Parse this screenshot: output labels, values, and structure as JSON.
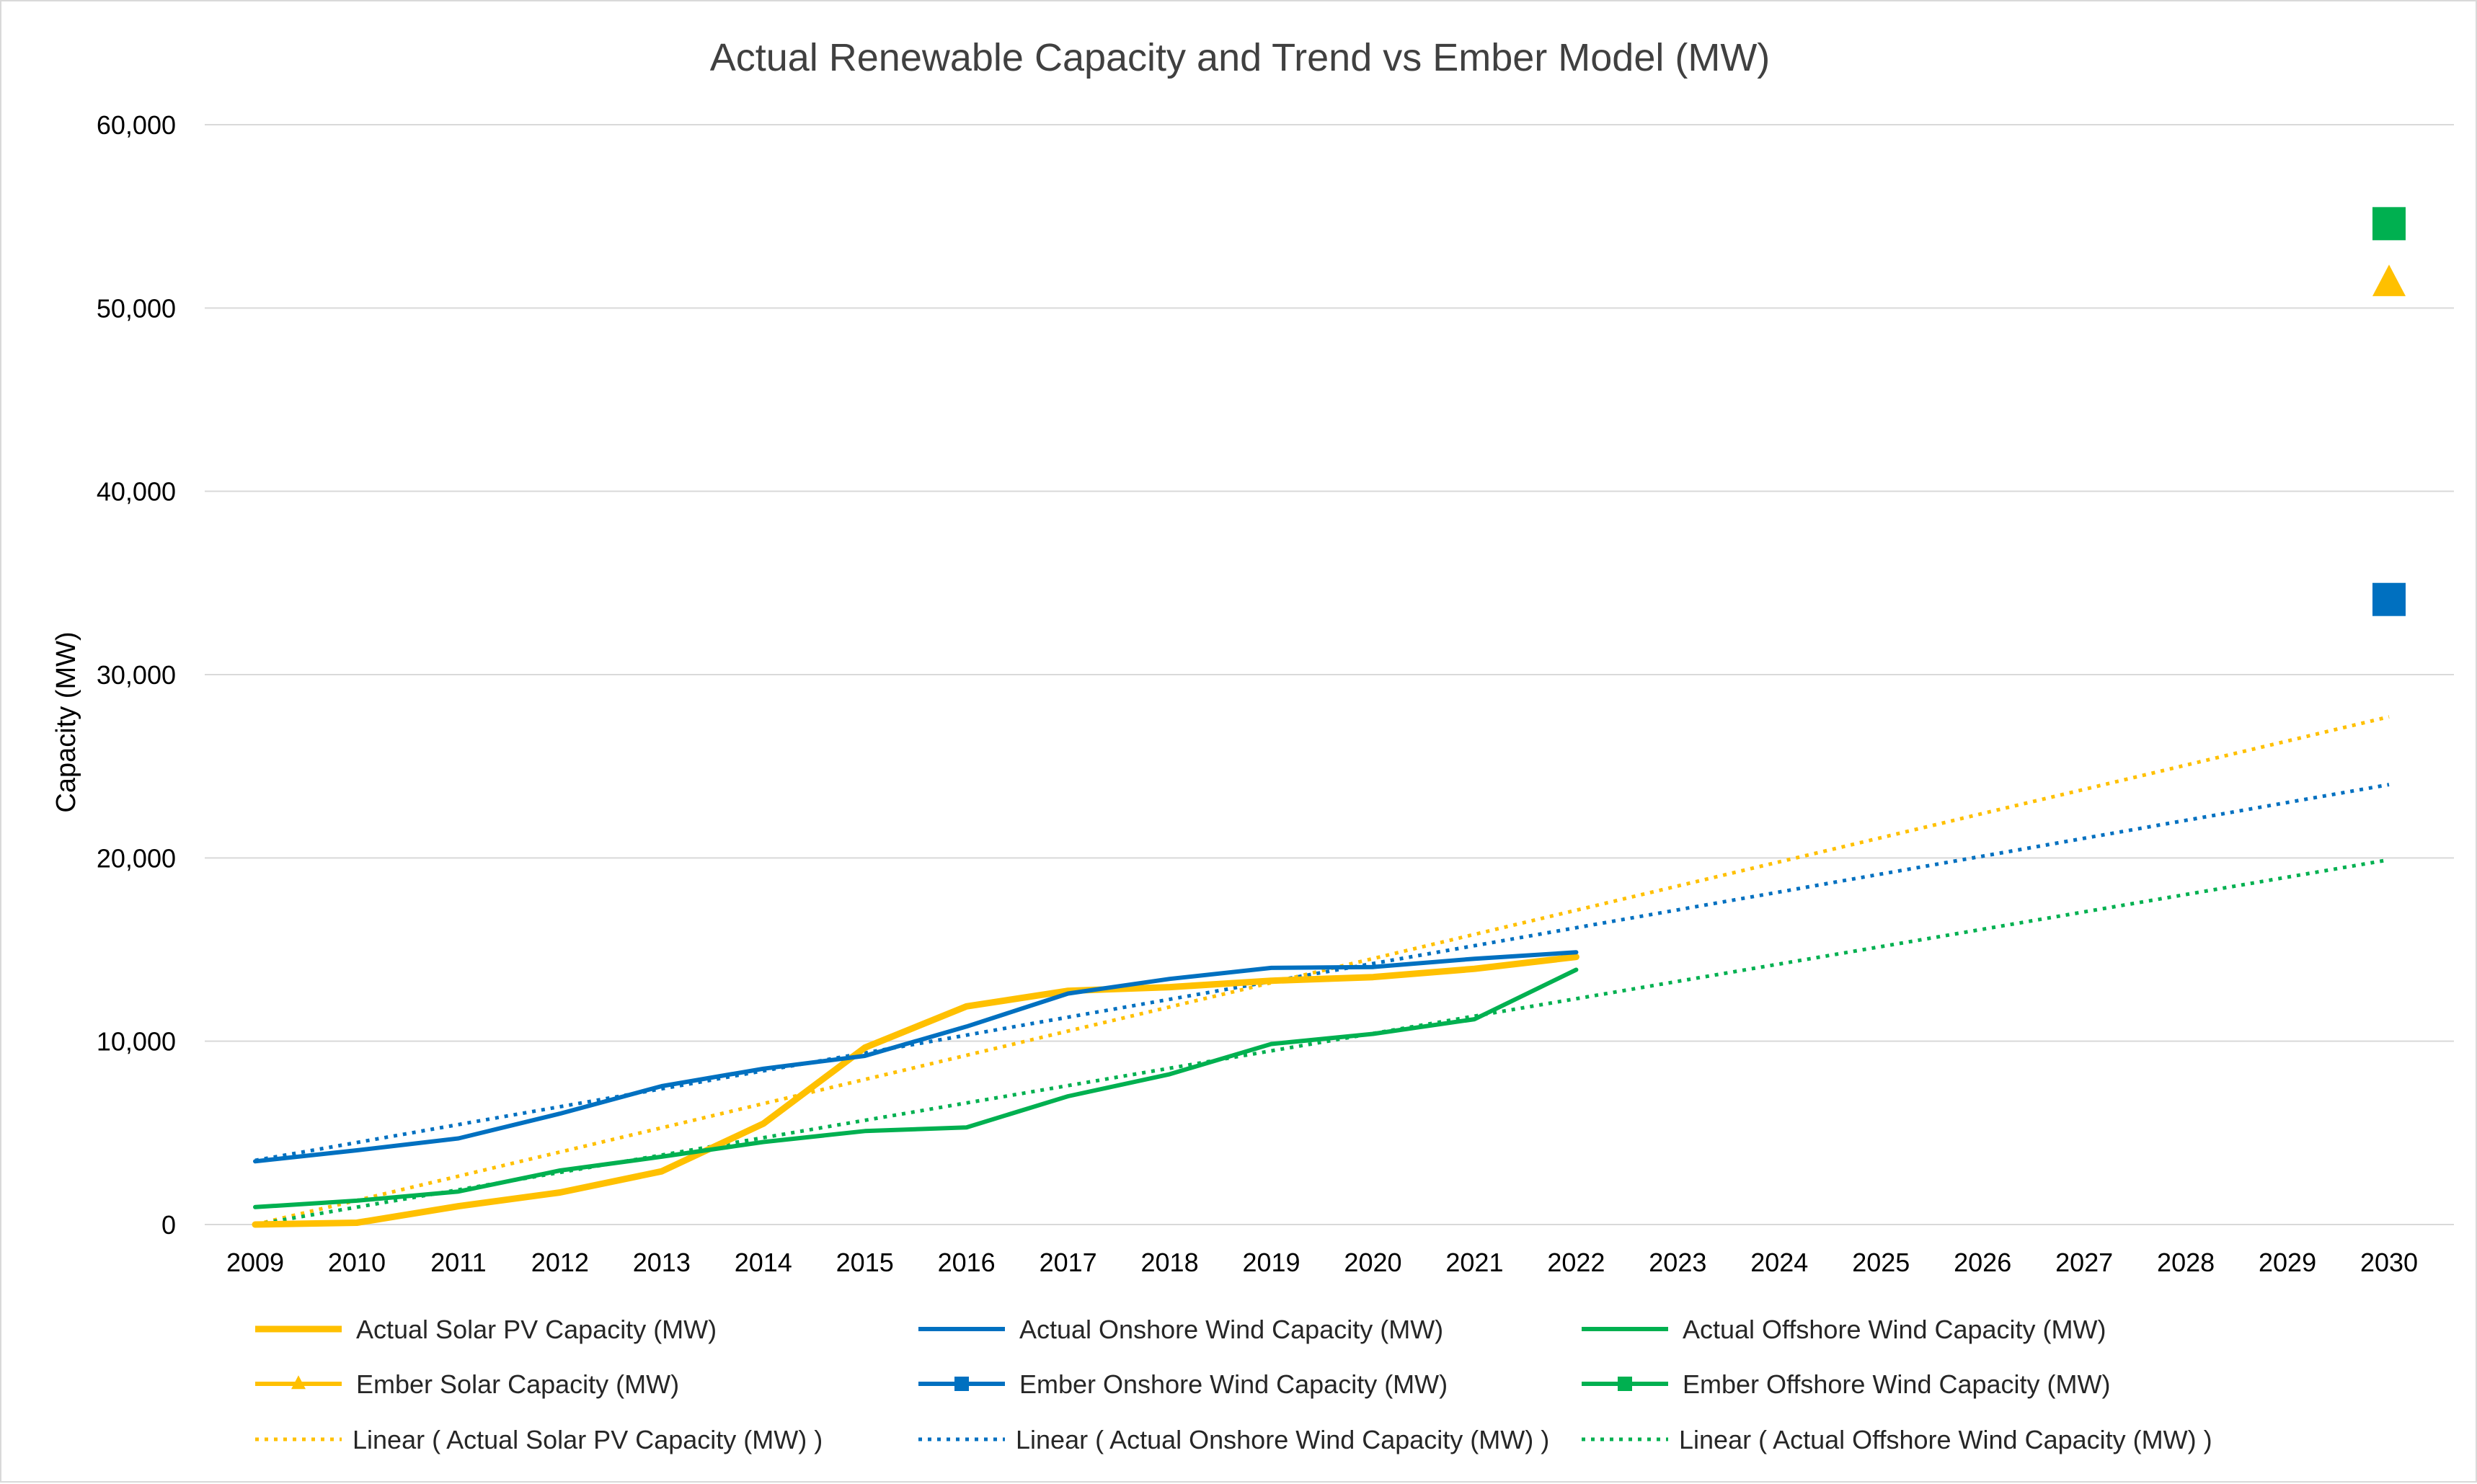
{
  "chart_data": {
    "type": "line",
    "title": "Actual Renewable Capacity and Trend vs Ember Model (MW)",
    "xlabel": "",
    "ylabel": "Capacity (MW)",
    "ylim": [
      0,
      60000
    ],
    "yticks": [
      0,
      10000,
      20000,
      30000,
      40000,
      50000,
      60000
    ],
    "ytick_labels": [
      "0",
      "10,000",
      "20,000",
      "30,000",
      "40,000",
      "50,000",
      "60,000"
    ],
    "categories": [
      "2009",
      "2010",
      "2011",
      "2012",
      "2013",
      "2014",
      "2015",
      "2016",
      "2017",
      "2018",
      "2019",
      "2020",
      "2021",
      "2022",
      "2023",
      "2024",
      "2025",
      "2026",
      "2027",
      "2028",
      "2029",
      "2030"
    ],
    "grid": true,
    "legend_position": "bottom",
    "series": [
      {
        "name": "Actual Solar PV Capacity (MW)",
        "color": "#FFC000",
        "style": "solid",
        "marker": "none",
        "values": [
          0,
          100,
          1000,
          1750,
          2900,
          5500,
          9650,
          11900,
          12750,
          12950,
          13300,
          13500,
          13950,
          14600,
          null,
          null,
          null,
          null,
          null,
          null,
          null,
          null
        ]
      },
      {
        "name": "Actual Onshore Wind Capacity (MW)",
        "color": "#0070C0",
        "style": "solid",
        "marker": "none",
        "values": [
          3450,
          4050,
          4700,
          6050,
          7550,
          8500,
          9200,
          10800,
          12600,
          13400,
          14000,
          14050,
          14500,
          14850,
          null,
          null,
          null,
          null,
          null,
          null,
          null,
          null
        ]
      },
      {
        "name": "Actual Offshore Wind Capacity (MW)",
        "color": "#00B050",
        "style": "solid",
        "marker": "none",
        "values": [
          950,
          1300,
          1800,
          2950,
          3700,
          4500,
          5100,
          5300,
          7000,
          8200,
          9850,
          10400,
          11200,
          13900,
          null,
          null,
          null,
          null,
          null,
          null,
          null,
          null
        ]
      },
      {
        "name": "Ember Solar Capacity (MW)",
        "color": "#FFC000",
        "style": "solid",
        "marker": "triangle",
        "values": [
          null,
          null,
          null,
          null,
          null,
          null,
          null,
          null,
          null,
          null,
          null,
          null,
          null,
          null,
          null,
          null,
          null,
          null,
          null,
          null,
          null,
          51300
        ]
      },
      {
        "name": "Ember Onshore Wind Capacity (MW)",
        "color": "#0070C0",
        "style": "solid",
        "marker": "square",
        "values": [
          null,
          null,
          null,
          null,
          null,
          null,
          null,
          null,
          null,
          null,
          null,
          null,
          null,
          null,
          null,
          null,
          null,
          null,
          null,
          null,
          null,
          34100
        ]
      },
      {
        "name": "Ember Offshore Wind Capacity (MW)",
        "color": "#00B050",
        "style": "solid",
        "marker": "square",
        "values": [
          null,
          null,
          null,
          null,
          null,
          null,
          null,
          null,
          null,
          null,
          null,
          null,
          null,
          null,
          null,
          null,
          null,
          null,
          null,
          null,
          null,
          54600
        ]
      },
      {
        "name": "Linear ( Actual Solar PV Capacity (MW) )",
        "color": "#FFC000",
        "style": "dotted",
        "marker": "none",
        "values": [
          0,
          1319,
          2638,
          3957,
          5276,
          6595,
          7914,
          9233,
          10552,
          11871,
          13190,
          14509,
          15828,
          17147,
          18466,
          19785,
          21104,
          22423,
          23742,
          25061,
          26380,
          27700
        ]
      },
      {
        "name": "Linear ( Actual Onshore Wind Capacity (MW) )",
        "color": "#0070C0",
        "style": "dotted",
        "marker": "none",
        "values": [
          3500,
          4476,
          5452,
          6429,
          7405,
          8381,
          9357,
          10333,
          11310,
          12286,
          13262,
          14238,
          15214,
          16190,
          17167,
          18143,
          19119,
          20095,
          21071,
          22048,
          23024,
          24000
        ]
      },
      {
        "name": "Linear ( Actual Offshore Wind Capacity (MW) )",
        "color": "#00B050",
        "style": "dotted",
        "marker": "none",
        "values": [
          0,
          948,
          1895,
          2843,
          3790,
          4738,
          5686,
          6633,
          7581,
          8529,
          9476,
          10424,
          11371,
          12319,
          13267,
          14214,
          15162,
          16110,
          17057,
          18005,
          18952,
          19900
        ]
      }
    ]
  }
}
